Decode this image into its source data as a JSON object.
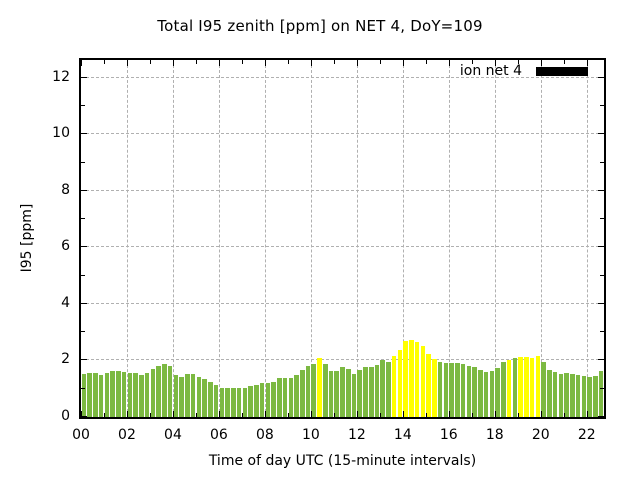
{
  "title": "Total I95 zenith [ppm] on NET 4, DoY=109",
  "legend": {
    "label": "ion net 4",
    "swatch_color": "#000000",
    "position": "top-right-inside"
  },
  "axes": {
    "x": {
      "label": "Time of day UTC (15-minute intervals)",
      "major_tick_labels": [
        "00",
        "02",
        "04",
        "06",
        "08",
        "10",
        "12",
        "14",
        "16",
        "18",
        "20",
        "22"
      ],
      "major_tick_hours": [
        0,
        2,
        4,
        6,
        8,
        10,
        12,
        14,
        16,
        18,
        20,
        22
      ],
      "minor_tick_hours": [
        1,
        3,
        5,
        7,
        9,
        11,
        13,
        15,
        17,
        19,
        21,
        23
      ],
      "hours_span": 22.75
    },
    "y": {
      "label": "I95 [ppm]",
      "major_tick_labels": [
        "0",
        "2",
        "4",
        "6",
        "8",
        "10",
        "12"
      ],
      "major_tick_values": [
        0,
        2,
        4,
        6,
        8,
        10,
        12
      ],
      "minor_tick_values": [
        1,
        3,
        5,
        7,
        9,
        11
      ],
      "max": 12.63
    }
  },
  "colors": {
    "bar_green": "#7cb942",
    "bar_yellow": "#ffff00",
    "grid": "#b0b0b0",
    "border": "#000000",
    "background": "#ffffff"
  },
  "chart_data": {
    "type": "bar",
    "title": "Total I95 zenith [ppm] on NET 4, DoY=109",
    "xlabel": "Time of day UTC (15-minute intervals)",
    "ylabel": "I95 [ppm]",
    "ylim": [
      0,
      12.63
    ],
    "xlim_hours": [
      0,
      22.75
    ],
    "grid": true,
    "legend_position": "top-right-inside",
    "interval_minutes": 15,
    "series": [
      {
        "name": "ion net 4"
      }
    ],
    "categories": [
      "00:00",
      "00:15",
      "00:30",
      "00:45",
      "01:00",
      "01:15",
      "01:30",
      "01:45",
      "02:00",
      "02:15",
      "02:30",
      "02:45",
      "03:00",
      "03:15",
      "03:30",
      "03:45",
      "04:00",
      "04:15",
      "04:30",
      "04:45",
      "05:00",
      "05:15",
      "05:30",
      "05:45",
      "06:00",
      "06:15",
      "06:30",
      "06:45",
      "07:00",
      "07:15",
      "07:30",
      "07:45",
      "08:00",
      "08:15",
      "08:30",
      "08:45",
      "09:00",
      "09:15",
      "09:30",
      "09:45",
      "10:00",
      "10:15",
      "10:30",
      "10:45",
      "11:00",
      "11:15",
      "11:30",
      "11:45",
      "12:00",
      "12:15",
      "12:30",
      "12:45",
      "13:00",
      "13:15",
      "13:30",
      "13:45",
      "14:00",
      "14:15",
      "14:30",
      "14:45",
      "15:00",
      "15:15",
      "15:30",
      "15:45",
      "16:00",
      "16:15",
      "16:30",
      "16:45",
      "17:00",
      "17:15",
      "17:30",
      "17:45",
      "18:00",
      "18:15",
      "18:30",
      "18:45",
      "19:00",
      "19:15",
      "19:30",
      "19:45",
      "20:00",
      "20:15",
      "20:30",
      "20:45",
      "21:00",
      "21:15",
      "21:30",
      "21:45",
      "22:00",
      "22:15",
      "22:30"
    ],
    "values": [
      1.53,
      1.56,
      1.54,
      1.48,
      1.56,
      1.62,
      1.63,
      1.61,
      1.54,
      1.54,
      1.47,
      1.56,
      1.69,
      1.8,
      1.87,
      1.82,
      1.47,
      1.41,
      1.52,
      1.52,
      1.43,
      1.33,
      1.25,
      1.14,
      1.01,
      1.01,
      1.04,
      1.01,
      1.04,
      1.1,
      1.15,
      1.19,
      1.19,
      1.24,
      1.37,
      1.37,
      1.39,
      1.48,
      1.68,
      1.82,
      1.88,
      2.08,
      1.89,
      1.63,
      1.63,
      1.76,
      1.69,
      1.51,
      1.65,
      1.78,
      1.78,
      1.83,
      2.0,
      1.95,
      2.16,
      2.36,
      2.68,
      2.74,
      2.66,
      2.51,
      2.22,
      2.05,
      1.93,
      1.9,
      1.9,
      1.9,
      1.88,
      1.8,
      1.78,
      1.65,
      1.6,
      1.62,
      1.73,
      1.95,
      2.02,
      2.08,
      2.12,
      2.12,
      2.1,
      2.15,
      1.95,
      1.68,
      1.58,
      1.53,
      1.56,
      1.53,
      1.5,
      1.44,
      1.42,
      1.46,
      1.62
    ],
    "yellow_indices": [
      41,
      54,
      55,
      56,
      57,
      58,
      59,
      60,
      61,
      74,
      76,
      77,
      78,
      79
    ],
    "bar_color_default": "green",
    "bar_color_highlight": "yellow"
  }
}
